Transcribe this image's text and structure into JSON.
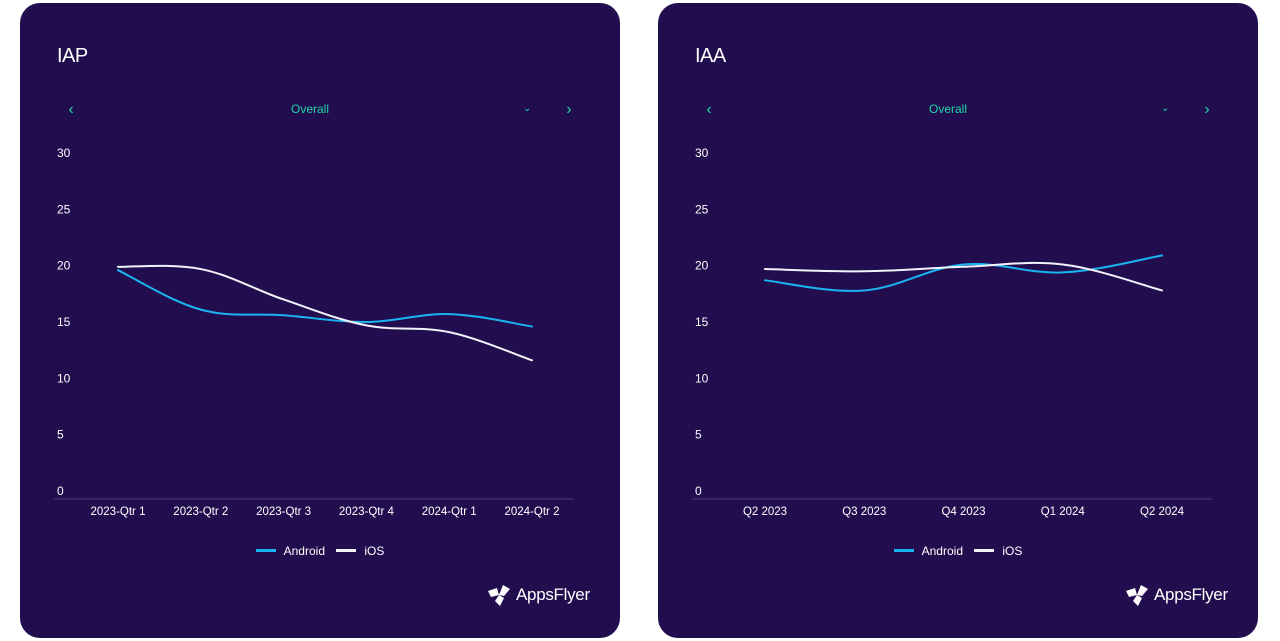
{
  "colors": {
    "android": "#1ab4f0",
    "ios": "#f2f2fa",
    "accent": "#1fd6a6",
    "panel": "#220e4e",
    "axis": "#4a3a78"
  },
  "legend": [
    {
      "name": "Android",
      "color": "#1ab4f0"
    },
    {
      "name": "iOS",
      "color": "#f2f2fa"
    }
  ],
  "panels": [
    {
      "title": "IAP",
      "nav": {
        "label": "Overall",
        "prev_icon": "chevron-left-icon",
        "dropdown_icon": "chevron-down-icon",
        "next_icon": "chevron-right-icon"
      },
      "logo": "AppsFlyer"
    },
    {
      "title": "IAA",
      "nav": {
        "label": "Overall",
        "prev_icon": "chevron-left-icon",
        "dropdown_icon": "chevron-down-icon",
        "next_icon": "chevron-right-icon"
      },
      "logo": "AppsFlyer"
    }
  ],
  "chart_data": [
    {
      "type": "line",
      "title": "IAP",
      "categories": [
        "2023-Qtr 1",
        "2023-Qtr 2",
        "2023-Qtr 3",
        "2023-Qtr 4",
        "2024-Qtr 1",
        "2024-Qtr 2"
      ],
      "series": [
        {
          "name": "Android",
          "values": [
            19.6,
            16.1,
            15.6,
            15.0,
            15.7,
            14.6
          ]
        },
        {
          "name": "iOS",
          "values": [
            19.9,
            19.7,
            17.0,
            14.7,
            14.1,
            11.6
          ]
        }
      ],
      "yticks": [
        0,
        5,
        10,
        15,
        20,
        25,
        30
      ],
      "ylim": [
        0,
        30
      ],
      "xlabel": "",
      "ylabel": "",
      "grid": false,
      "legend": "bottom-center"
    },
    {
      "type": "line",
      "title": "IAA",
      "categories": [
        "Q2 2023",
        "Q3 2023",
        "Q4 2023",
        "Q1 2024",
        "Q2 2024"
      ],
      "series": [
        {
          "name": "Android",
          "values": [
            18.7,
            17.8,
            20.1,
            19.4,
            20.9
          ]
        },
        {
          "name": "iOS",
          "values": [
            19.7,
            19.5,
            19.9,
            20.1,
            17.8
          ]
        }
      ],
      "yticks": [
        0,
        5,
        10,
        15,
        20,
        25,
        30
      ],
      "ylim": [
        0,
        30
      ],
      "xlabel": "",
      "ylabel": "",
      "grid": false,
      "legend": "bottom-center"
    }
  ]
}
